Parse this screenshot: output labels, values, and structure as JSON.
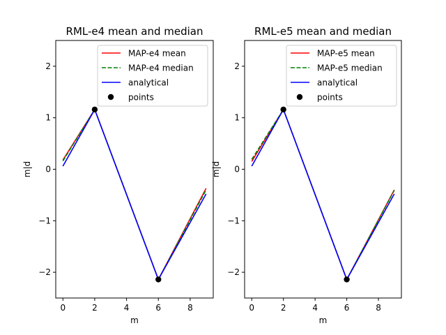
{
  "chart_data": [
    {
      "type": "line",
      "title": "RML-e4 mean and median",
      "xlabel": "m",
      "ylabel": "m|d",
      "xlim": [
        -0.45,
        9.45
      ],
      "ylim": [
        -2.5,
        2.5
      ],
      "xticks": [
        0,
        2,
        4,
        6,
        8
      ],
      "yticks": [
        -2,
        -1,
        0,
        1,
        2
      ],
      "xtick_labels": [
        "0",
        "2",
        "4",
        "6",
        "8"
      ],
      "ytick_labels": [
        "−2",
        "−1",
        "0",
        "1",
        "2"
      ],
      "legend_position": "top-right",
      "series": [
        {
          "name": "MAP-e4 mean",
          "color": "#ff0000",
          "style": "solid",
          "x": [
            0,
            2,
            6,
            9
          ],
          "y": [
            0.18,
            1.16,
            -2.14,
            -0.37
          ]
        },
        {
          "name": "MAP-e4 median",
          "color": "#008000",
          "style": "dashed",
          "x": [
            0,
            2,
            6,
            9
          ],
          "y": [
            0.16,
            1.16,
            -2.14,
            -0.4
          ]
        },
        {
          "name": "analytical",
          "color": "#0000ff",
          "style": "solid",
          "x": [
            0,
            2,
            6,
            9
          ],
          "y": [
            0.06,
            1.16,
            -2.14,
            -0.48
          ]
        },
        {
          "name": "points",
          "color": "#000000",
          "style": "marker",
          "x": [
            2,
            6
          ],
          "y": [
            1.16,
            -2.14
          ]
        }
      ]
    },
    {
      "type": "line",
      "title": "RML-e5 mean and median",
      "xlabel": "m",
      "ylabel": "m|d",
      "xlim": [
        -0.45,
        9.45
      ],
      "ylim": [
        -2.5,
        2.5
      ],
      "xticks": [
        0,
        2,
        4,
        6,
        8
      ],
      "yticks": [
        -2,
        -1,
        0,
        1,
        2
      ],
      "xtick_labels": [
        "0",
        "2",
        "4",
        "6",
        "8"
      ],
      "ytick_labels": [
        "−2",
        "−1",
        "0",
        "1",
        "2"
      ],
      "legend_position": "top-right",
      "series": [
        {
          "name": "MAP-e5 mean",
          "color": "#ff0000",
          "style": "solid",
          "x": [
            0,
            2,
            6,
            9
          ],
          "y": [
            0.15,
            1.16,
            -2.14,
            -0.4
          ]
        },
        {
          "name": "MAP-e5 median",
          "color": "#008000",
          "style": "dashed",
          "x": [
            0,
            2,
            6,
            9
          ],
          "y": [
            0.19,
            1.16,
            -2.14,
            -0.41
          ]
        },
        {
          "name": "analytical",
          "color": "#0000ff",
          "style": "solid",
          "x": [
            0,
            2,
            6,
            9
          ],
          "y": [
            0.06,
            1.16,
            -2.14,
            -0.48
          ]
        },
        {
          "name": "points",
          "color": "#000000",
          "style": "marker",
          "x": [
            2,
            6
          ],
          "y": [
            1.16,
            -2.14
          ]
        }
      ]
    }
  ]
}
